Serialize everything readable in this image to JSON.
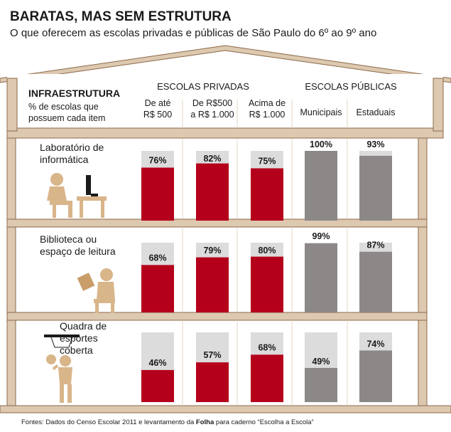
{
  "title": "BARATAS, MAS SEM ESTRUTURA",
  "subtitle": "O que oferecem as escolas privadas e públicas de São Paulo do 6º ao 9º ano",
  "infra_heading": "INFRAESTRUTURA",
  "infra_note": [
    "% de escolas que",
    "possuem cada item"
  ],
  "group_private": "ESCOLAS PRIVADAS",
  "group_public": "ESCOLAS PÚBLICAS",
  "source": {
    "prefix": "Fontes: Dados do Censo Escolar 2011 e levantamento da ",
    "bold": "Folha",
    "suffix": " para caderno “Escolha a Escola”"
  },
  "colors": {
    "private_bar": "#b5001b",
    "public_bar": "#8c8888",
    "bar_track": "#dcdcdc",
    "building": "#ddc8b0",
    "building_outline": "#8b6a4a"
  },
  "chart_data": {
    "type": "bar",
    "unit": "%",
    "ylim": [
      0,
      100
    ],
    "columns": [
      {
        "key": "privada_ate_500",
        "group": "ESCOLAS PRIVADAS",
        "label": [
          "De até",
          "R$ 500"
        ]
      },
      {
        "key": "privada_500_1000",
        "group": "ESCOLAS PRIVADAS",
        "label": [
          "De R$500",
          "a R$ 1.000"
        ]
      },
      {
        "key": "privada_acima_1000",
        "group": "ESCOLAS PRIVADAS",
        "label": [
          "Acima de",
          "R$ 1.000"
        ]
      },
      {
        "key": "municipais",
        "group": "ESCOLAS PÚBLICAS",
        "label": [
          "Municipais"
        ]
      },
      {
        "key": "estaduais",
        "group": "ESCOLAS PÚBLICAS",
        "label": [
          "Estaduais"
        ]
      }
    ],
    "rows": [
      {
        "label": [
          "Laboratório de",
          "informática"
        ],
        "icon": "computer-lab-icon",
        "values": [
          76,
          82,
          75,
          100,
          93
        ]
      },
      {
        "label": [
          "Biblioteca ou",
          "espaço de leitura"
        ],
        "icon": "reader-icon",
        "values": [
          68,
          79,
          80,
          99,
          87
        ]
      },
      {
        "label": [
          "Quadra de",
          "esportes",
          "coberta"
        ],
        "icon": "basketball-icon",
        "values": [
          46,
          57,
          68,
          49,
          74
        ]
      }
    ]
  }
}
